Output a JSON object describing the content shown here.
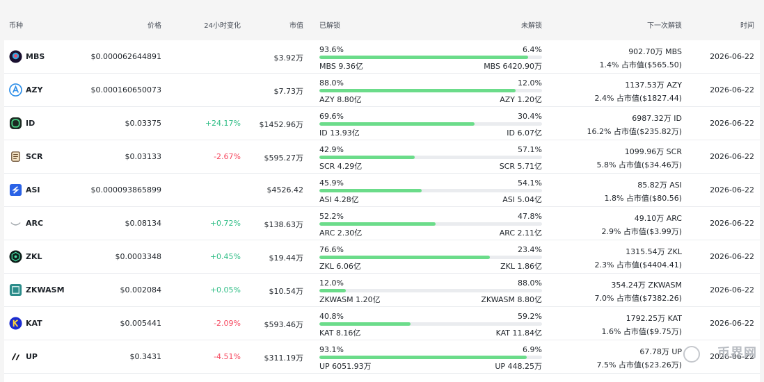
{
  "header": {
    "coin": "币种",
    "price": "价格",
    "change": "24小时变化",
    "mcap": "市值",
    "unlocked": "已解锁",
    "locked": "未解锁",
    "next_unlock": "下一次解锁",
    "time": "时间"
  },
  "rows": [
    {
      "symbol": "MBS",
      "icon": "mbs-icon",
      "price": "$0.000062644891",
      "change": "",
      "change_dir": "",
      "mcap": "$3.92万",
      "unlocked_pct": "93.6%",
      "unlocked_amt": "MBS 9.36亿",
      "locked_pct": "6.4%",
      "locked_amt": "MBS 6420.90万",
      "progress": 93.6,
      "next_amount": "902.70万 MBS",
      "next_share": "1.4% 占市值($565.50)",
      "time": "2026-06-22"
    },
    {
      "symbol": "AZY",
      "icon": "azy-icon",
      "price": "$0.000160650073",
      "change": "",
      "change_dir": "",
      "mcap": "$7.73万",
      "unlocked_pct": "88.0%",
      "unlocked_amt": "AZY 8.80亿",
      "locked_pct": "12.0%",
      "locked_amt": "AZY 1.20亿",
      "progress": 88.0,
      "next_amount": "1137.53万 AZY",
      "next_share": "2.4% 占市值($1827.44)",
      "time": "2026-06-22"
    },
    {
      "symbol": "ID",
      "icon": "id-icon",
      "price": "$0.03375",
      "change": "+24.17%",
      "change_dir": "up",
      "mcap": "$1452.96万",
      "unlocked_pct": "69.6%",
      "unlocked_amt": "ID 13.93亿",
      "locked_pct": "30.4%",
      "locked_amt": "ID 6.07亿",
      "progress": 69.6,
      "next_amount": "6987.32万 ID",
      "next_share": "16.2% 占市值($235.82万)",
      "time": "2026-06-22"
    },
    {
      "symbol": "SCR",
      "icon": "scr-icon",
      "price": "$0.03133",
      "change": "-2.67%",
      "change_dir": "down",
      "mcap": "$595.27万",
      "unlocked_pct": "42.9%",
      "unlocked_amt": "SCR 4.29亿",
      "locked_pct": "57.1%",
      "locked_amt": "SCR 5.71亿",
      "progress": 42.9,
      "next_amount": "1099.96万 SCR",
      "next_share": "5.8% 占市值($34.46万)",
      "time": "2026-06-22"
    },
    {
      "symbol": "ASI",
      "icon": "asi-icon",
      "price": "$0.000093865899",
      "change": "",
      "change_dir": "",
      "mcap": "$4526.42",
      "unlocked_pct": "45.9%",
      "unlocked_amt": "ASI 4.28亿",
      "locked_pct": "54.1%",
      "locked_amt": "ASI 5.04亿",
      "progress": 45.9,
      "next_amount": "85.82万 ASI",
      "next_share": "1.8% 占市值($80.56)",
      "time": "2026-06-22"
    },
    {
      "symbol": "ARC",
      "icon": "arc-icon",
      "price": "$0.08134",
      "change": "+0.72%",
      "change_dir": "up",
      "mcap": "$138.63万",
      "unlocked_pct": "52.2%",
      "unlocked_amt": "ARC 2.30亿",
      "locked_pct": "47.8%",
      "locked_amt": "ARC 2.11亿",
      "progress": 52.2,
      "next_amount": "49.10万 ARC",
      "next_share": "2.9% 占市值($3.99万)",
      "time": "2026-06-22"
    },
    {
      "symbol": "ZKL",
      "icon": "zkl-icon",
      "price": "$0.0003348",
      "change": "+0.45%",
      "change_dir": "up",
      "mcap": "$19.44万",
      "unlocked_pct": "76.6%",
      "unlocked_amt": "ZKL 6.06亿",
      "locked_pct": "23.4%",
      "locked_amt": "ZKL 1.86亿",
      "progress": 76.6,
      "next_amount": "1315.54万 ZKL",
      "next_share": "2.3% 占市值($4404.41)",
      "time": "2026-06-22"
    },
    {
      "symbol": "ZKWASM",
      "icon": "zkwasm-icon",
      "price": "$0.002084",
      "change": "+0.05%",
      "change_dir": "up",
      "mcap": "$10.54万",
      "unlocked_pct": "12.0%",
      "unlocked_amt": "ZKWASM 1.20亿",
      "locked_pct": "88.0%",
      "locked_amt": "ZKWASM 8.80亿",
      "progress": 12.0,
      "next_amount": "354.24万 ZKWASM",
      "next_share": "7.0% 占市值($7382.26)",
      "time": "2026-06-22"
    },
    {
      "symbol": "KAT",
      "icon": "kat-icon",
      "price": "$0.005441",
      "change": "-2.09%",
      "change_dir": "down",
      "mcap": "$593.46万",
      "unlocked_pct": "40.8%",
      "unlocked_amt": "KAT 8.16亿",
      "locked_pct": "59.2%",
      "locked_amt": "KAT 11.84亿",
      "progress": 40.8,
      "next_amount": "1792.25万 KAT",
      "next_share": "1.6% 占市值($9.75万)",
      "time": "2026-06-22"
    },
    {
      "symbol": "UP",
      "icon": "up-icon",
      "price": "$0.3431",
      "change": "-4.51%",
      "change_dir": "down",
      "mcap": "$311.19万",
      "unlocked_pct": "93.1%",
      "unlocked_amt": "UP 6051.93万",
      "locked_pct": "6.9%",
      "locked_amt": "UP 448.25万",
      "progress": 93.1,
      "next_amount": "67.78万 UP",
      "next_share": "7.5% 占市值($23.26万)",
      "time": "2026-06-22"
    }
  ],
  "watermark": "币界网",
  "colors": {
    "up": "#2ebd85",
    "down": "#f6465d",
    "bar": "#6bdc8a",
    "track": "#eaecef"
  }
}
